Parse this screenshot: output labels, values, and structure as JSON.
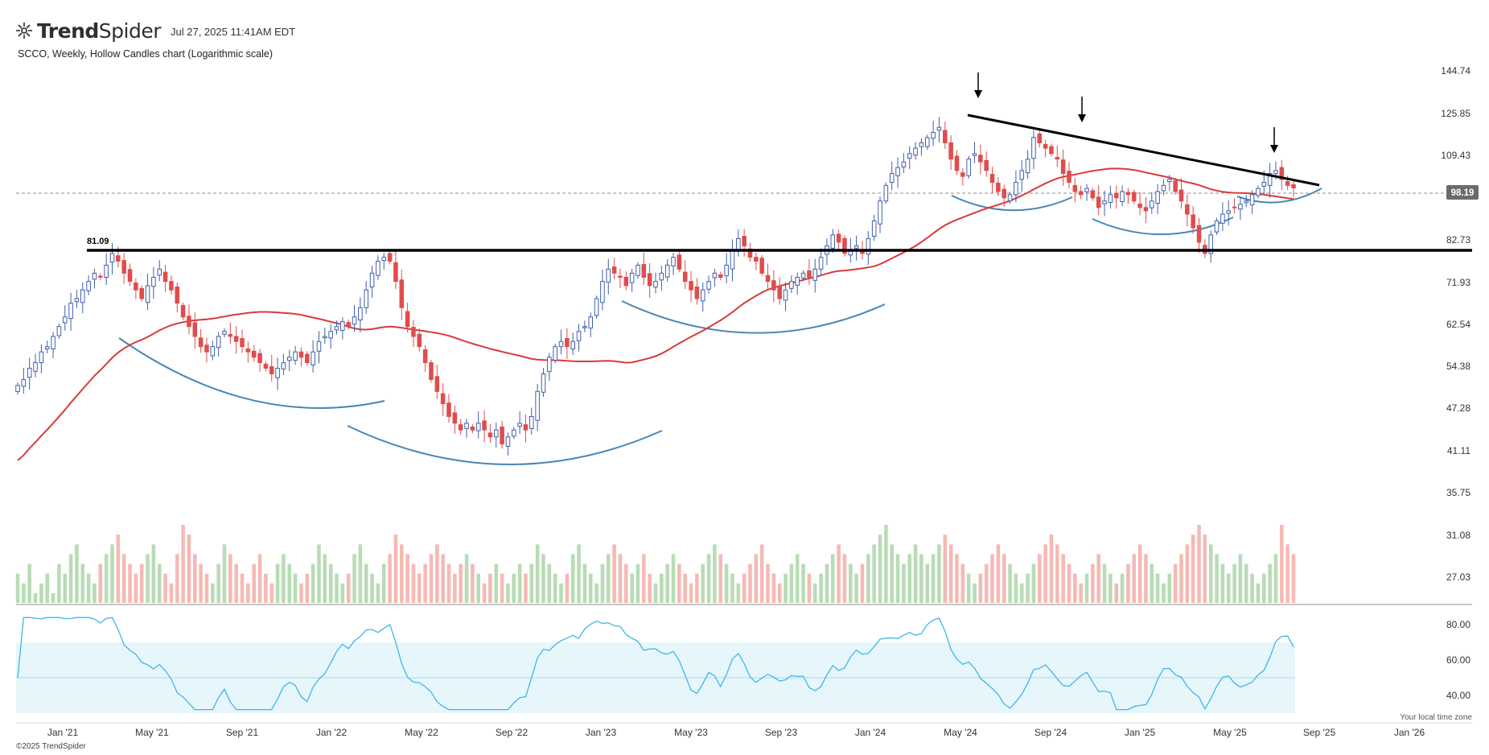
{
  "header": {
    "brand_prefix": "Trend",
    "brand_suffix": "Spider",
    "timestamp": "Jul 27, 2025 11:41AM EDT",
    "subtitle": "SCCO, Weekly, Hollow Candles chart (Logarithmic scale)",
    "copyright": "©2025 TrendSpider",
    "timezone_note": "Your local time zone"
  },
  "colors": {
    "up": "#3f5faa",
    "down": "#e04c4c",
    "ma": "#d93a3a",
    "arc": "#4b86b4",
    "vol_up": "#b8dcb5",
    "vol_down": "#f6b9b4",
    "rsi_line": "#3fb7e6",
    "rsi_band": "#e7f6fb",
    "price_badge": "#6b6b6b"
  },
  "chart_data": [
    {
      "type": "candlestick",
      "title": "SCCO, Weekly, Hollow Candles chart (Logarithmic scale)",
      "scale": "log",
      "x_start": "2020-11-20",
      "x_tick_labels": [
        "Jan '21",
        "May '21",
        "Sep '21",
        "Jan '22",
        "May '22",
        "Sep '22",
        "Jan '23",
        "May '23",
        "Sep '23",
        "Jan '24",
        "May '24",
        "Sep '24",
        "Jan '25",
        "May '25",
        "Sep '25",
        "Jan '26"
      ],
      "y_tick_labels": [
        "144.74",
        "125.85",
        "109.43",
        "82.73",
        "71.93",
        "62.54",
        "54.38",
        "47.28",
        "41.11",
        "35.75",
        "31.08",
        "27.03"
      ],
      "last_price": "98.19",
      "support_level": "81.09",
      "series": [
        {
          "name": "SCCO",
          "closes": [
            51,
            52,
            54,
            55,
            57,
            58,
            60,
            62,
            64,
            67,
            68,
            70,
            72,
            74,
            73,
            76,
            79,
            77,
            74,
            72,
            70,
            68,
            71,
            73,
            75,
            72,
            70,
            67,
            64,
            62,
            60,
            58,
            57,
            58,
            60,
            61,
            60,
            59,
            58,
            57,
            56,
            55,
            54,
            53,
            54,
            55,
            56,
            57,
            56,
            55,
            57,
            59,
            60,
            61,
            62,
            63,
            62,
            64,
            66,
            70,
            74,
            77,
            78,
            77,
            72,
            66,
            62,
            60,
            58,
            55,
            52,
            50,
            48,
            46,
            45,
            44,
            45,
            44,
            45,
            44,
            43,
            44,
            42,
            43,
            44,
            45,
            44,
            46,
            50,
            53,
            56,
            58,
            59,
            58,
            59,
            61,
            62,
            64,
            68,
            72,
            75,
            74,
            73,
            71,
            74,
            76,
            73,
            71,
            72,
            74,
            76,
            78,
            75,
            72,
            70,
            68,
            70,
            72,
            74,
            73,
            76,
            80,
            83,
            81,
            78,
            77,
            74,
            72,
            70,
            68,
            70,
            72,
            73,
            74,
            73,
            75,
            78,
            81,
            84,
            82,
            79,
            80,
            81,
            79,
            83,
            88,
            94,
            99,
            103,
            105,
            107,
            110,
            112,
            114,
            116,
            118,
            120,
            114,
            108,
            104,
            102,
            108,
            110,
            107,
            104,
            100,
            97,
            95,
            96,
            100,
            104,
            108,
            116,
            114,
            112,
            110,
            108,
            103,
            100,
            97,
            96,
            98,
            95,
            92,
            94,
            96,
            95,
            97,
            96,
            94,
            92,
            91,
            94,
            97,
            99,
            101,
            97,
            94,
            90,
            86,
            82,
            79,
            84,
            88,
            90,
            91,
            92,
            93,
            94,
            96,
            98,
            100,
            103,
            104,
            101,
            99,
            98.19
          ],
          "volumes": [
            28,
            27,
            29,
            26,
            27,
            28,
            26,
            29,
            28,
            30,
            31,
            29,
            28,
            27,
            29,
            30,
            31,
            32,
            30,
            29,
            28,
            29,
            30,
            31,
            29,
            28,
            27,
            30,
            33,
            32,
            30,
            29,
            28,
            27,
            29,
            31,
            30,
            29,
            28,
            27,
            29,
            30,
            28,
            27,
            29,
            30,
            29,
            28,
            27,
            28,
            29,
            31,
            30,
            29,
            28,
            27,
            28,
            30,
            31,
            29,
            28,
            27,
            29,
            30,
            32,
            31,
            30,
            29,
            28,
            29,
            30,
            31,
            30,
            29,
            28,
            29,
            30,
            29,
            28,
            27,
            28,
            29,
            28,
            27,
            28,
            29,
            28,
            29,
            31,
            30,
            29,
            28,
            27,
            28,
            30,
            31,
            29,
            28,
            27,
            29,
            30,
            31,
            30,
            29,
            28,
            29,
            30,
            28,
            27,
            28,
            29,
            30,
            29,
            28,
            27,
            28,
            29,
            30,
            31,
            30,
            29,
            28,
            27,
            28,
            29,
            30,
            31,
            29,
            28,
            27,
            28,
            29,
            30,
            29,
            28,
            27,
            28,
            29,
            30,
            31,
            30,
            29,
            28,
            29,
            30,
            31,
            32,
            33,
            31,
            30,
            29,
            30,
            31,
            30,
            29,
            30,
            31,
            32,
            31,
            30,
            29,
            28,
            27,
            28,
            29,
            30,
            31,
            30,
            29,
            28,
            27,
            28,
            29,
            30,
            31,
            32,
            31,
            30,
            29,
            28,
            27,
            28,
            29,
            30,
            29,
            28,
            27,
            28,
            29,
            30,
            31,
            30,
            29,
            28,
            27,
            28,
            29,
            30,
            31,
            32,
            33,
            32,
            31,
            30,
            29,
            28,
            29,
            30,
            29,
            28,
            27,
            28,
            29,
            30,
            33,
            31,
            30
          ]
        },
        {
          "name": "MA",
          "values": []
        }
      ]
    },
    {
      "type": "line",
      "title": "",
      "y_tick_labels": [
        "80.00",
        "60.00",
        "40.00"
      ],
      "rsi_band": [
        30,
        70
      ],
      "series": [
        {
          "name": "RSI",
          "values": []
        }
      ]
    }
  ]
}
